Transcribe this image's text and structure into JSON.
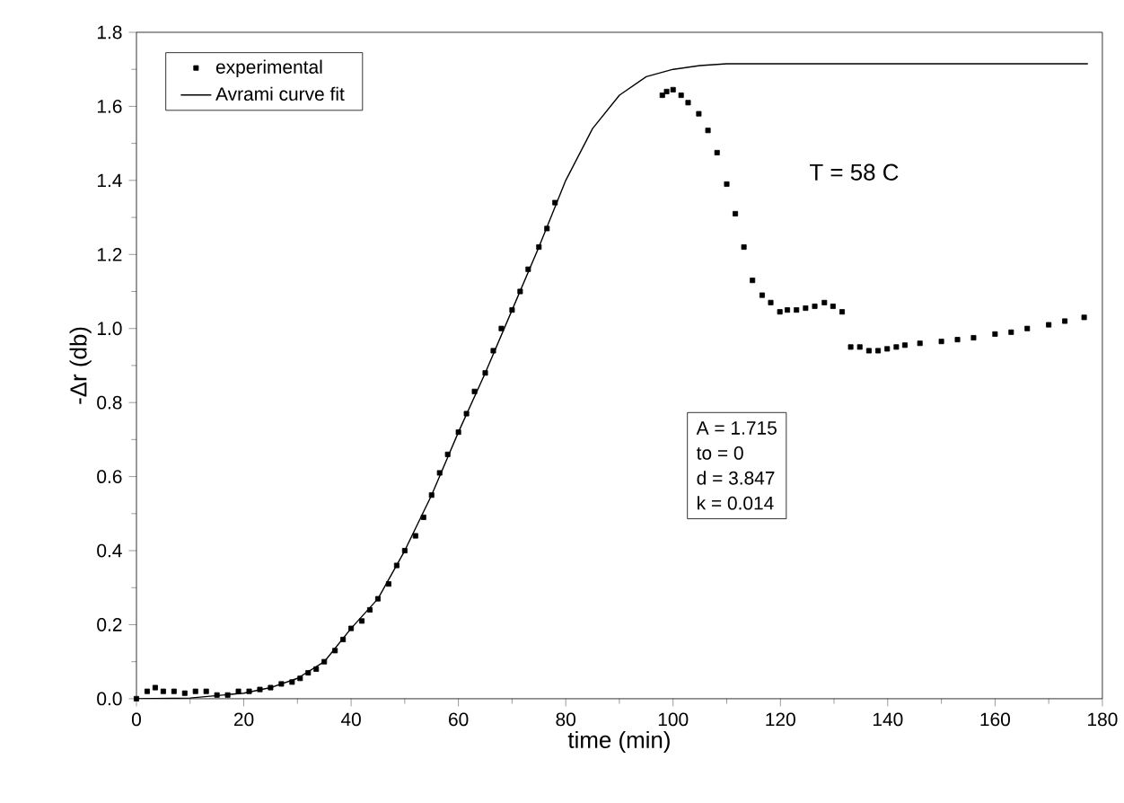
{
  "chart_data": {
    "type": "line",
    "xlabel": "time (min)",
    "ylabel": "-Δr (db)",
    "xlim": [
      0,
      180
    ],
    "ylim": [
      0,
      1.8
    ],
    "xticks": [
      0,
      20,
      40,
      60,
      80,
      100,
      120,
      140,
      160,
      180
    ],
    "yticks": [
      {
        "value": 0,
        "label": "0.0"
      },
      0.2,
      0.4,
      0.6,
      0.8,
      {
        "value": 1,
        "label": "1.0"
      },
      1.2,
      1.4,
      1.6,
      1.8
    ],
    "legend": "top left",
    "annotations": [
      "T = 58 C",
      "A  =  1.715",
      "to =  0",
      "d  =  3.847",
      "k  =  0.014"
    ],
    "series": [
      {
        "name": "experimental",
        "type": "scatter",
        "marker": "square",
        "color": "#000000",
        "x": [
          0,
          2,
          3.5,
          5,
          7,
          9,
          11,
          13,
          15,
          17,
          19,
          21,
          23,
          25,
          27,
          29,
          30.5,
          32,
          33.5,
          35,
          37,
          38.5,
          40,
          42,
          43.5,
          45,
          47,
          48.5,
          50,
          52,
          53.5,
          55,
          56.5,
          58,
          60,
          61.5,
          63,
          65,
          66.5,
          68,
          70,
          71.5,
          73,
          75,
          76.5,
          78,
          98,
          98.8,
          100,
          101.5,
          102.8,
          104.8,
          106.5,
          108.2,
          110,
          111.6,
          113.2,
          114.8,
          116.6,
          118.2,
          119.9,
          121.3,
          123,
          124.7,
          126.4,
          128.2,
          129.8,
          131.5,
          133.1,
          134.8,
          136.5,
          138.2,
          139.9,
          141.6,
          143.2,
          146,
          150,
          153,
          156,
          160,
          163,
          166,
          170,
          173,
          176.6
        ],
        "values": [
          0.0,
          0.02,
          0.03,
          0.02,
          0.02,
          0.015,
          0.02,
          0.02,
          0.01,
          0.01,
          0.02,
          0.02,
          0.025,
          0.03,
          0.04,
          0.045,
          0.055,
          0.07,
          0.08,
          0.1,
          0.13,
          0.16,
          0.19,
          0.21,
          0.24,
          0.27,
          0.31,
          0.36,
          0.4,
          0.44,
          0.49,
          0.55,
          0.61,
          0.66,
          0.72,
          0.77,
          0.83,
          0.88,
          0.94,
          1.0,
          1.05,
          1.1,
          1.16,
          1.22,
          1.27,
          1.34,
          1.63,
          1.64,
          1.645,
          1.63,
          1.61,
          1.58,
          1.535,
          1.475,
          1.39,
          1.31,
          1.22,
          1.13,
          1.09,
          1.07,
          1.045,
          1.05,
          1.05,
          1.055,
          1.06,
          1.07,
          1.06,
          1.045,
          0.95,
          0.95,
          0.94,
          0.94,
          0.945,
          0.95,
          0.955,
          0.96,
          0.965,
          0.97,
          0.975,
          0.985,
          0.99,
          1.0,
          1.01,
          1.02,
          1.03
        ]
      },
      {
        "name": "Avrami curve fit",
        "marker": "none",
        "color": "#000000",
        "x": [
          0,
          10,
          20,
          25,
          30,
          35,
          40,
          45,
          50,
          55,
          60,
          65,
          70,
          75,
          80,
          85,
          90,
          95,
          100,
          105,
          110,
          120,
          177.3
        ],
        "values": [
          0.0,
          0.002,
          0.015,
          0.03,
          0.055,
          0.1,
          0.19,
          0.27,
          0.4,
          0.55,
          0.72,
          0.88,
          1.05,
          1.22,
          1.4,
          1.54,
          1.63,
          1.68,
          1.7,
          1.71,
          1.715,
          1.715,
          1.715
        ]
      }
    ]
  }
}
